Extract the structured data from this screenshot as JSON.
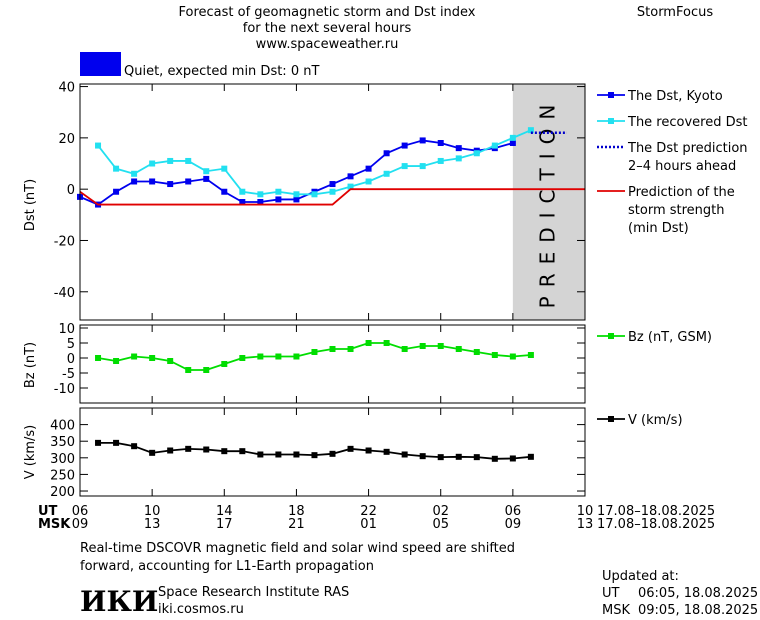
{
  "header": {
    "title_lines": [
      "Forecast of geomagnetic storm and Dst index",
      "for the next several hours",
      "www.spaceweather.ru"
    ],
    "brand": "StormFocus",
    "status": {
      "text": "Quiet, expected min Dst: 0 nT",
      "color": "#0000ee"
    }
  },
  "time_axis": {
    "ut_label": "UT",
    "msk_label": "MSK",
    "ut_ticks": [
      {
        "value": 0,
        "label": "06"
      },
      {
        "value": 4,
        "label": "10"
      },
      {
        "value": 8,
        "label": "14"
      },
      {
        "value": 12,
        "label": "18"
      },
      {
        "value": 16,
        "label": "22"
      },
      {
        "value": 20,
        "label": "02"
      },
      {
        "value": 24,
        "label": "06"
      },
      {
        "value": 28,
        "label": "10"
      }
    ],
    "msk_ticks": [
      {
        "value": 0,
        "label": "09"
      },
      {
        "value": 4,
        "label": "13"
      },
      {
        "value": 8,
        "label": "17"
      },
      {
        "value": 12,
        "label": "21"
      },
      {
        "value": 16,
        "label": "01"
      },
      {
        "value": 20,
        "label": "05"
      },
      {
        "value": 24,
        "label": "09"
      },
      {
        "value": 28,
        "label": "13"
      }
    ],
    "ut_range": "17.08–18.08.2025",
    "msk_range": "17.08–18.08.2025"
  },
  "chart_data": [
    {
      "type": "line",
      "ylabel": "Dst (nT)",
      "xlim": [
        0,
        28
      ],
      "ylim": [
        -51,
        41
      ],
      "yticks": [
        -40,
        -20,
        0,
        20,
        40
      ],
      "legend": "right",
      "prediction_region": {
        "range": [
          24,
          28
        ],
        "label": "PREDICTION",
        "color": "#d4d4d4"
      },
      "x": [
        0,
        1,
        2,
        3,
        4,
        5,
        6,
        7,
        8,
        9,
        10,
        11,
        12,
        13,
        14,
        15,
        16,
        17,
        18,
        19,
        20,
        21,
        22,
        23,
        24,
        25,
        26,
        27,
        28
      ],
      "series": [
        {
          "name": "The Dst, Kyoto",
          "color": "#0000ee",
          "marker": "square",
          "dash": false,
          "values": [
            -3,
            -6,
            -1,
            3,
            3,
            2,
            3,
            4,
            -1,
            -5,
            -5,
            -4,
            -4,
            -1,
            2,
            5,
            8,
            14,
            17,
            19,
            18,
            16,
            15,
            16,
            18,
            null,
            null,
            null,
            null
          ]
        },
        {
          "name": "The recovered Dst",
          "color": "#22e0f0",
          "marker": "square",
          "dash": false,
          "values": [
            null,
            17,
            8,
            6,
            10,
            11,
            11,
            7,
            8,
            -1,
            -2,
            -1,
            -2,
            -2,
            -1,
            1,
            3,
            6,
            9,
            9,
            11,
            12,
            14,
            17,
            20,
            23,
            null,
            null,
            null
          ]
        },
        {
          "name": "The Dst prediction\n2–4 hours ahead",
          "color": "#0000cc",
          "marker": "none",
          "dash": true,
          "values": [
            null,
            null,
            null,
            null,
            null,
            null,
            null,
            null,
            null,
            null,
            null,
            null,
            null,
            null,
            null,
            null,
            null,
            null,
            null,
            null,
            null,
            null,
            null,
            null,
            null,
            22,
            22,
            22,
            null
          ]
        },
        {
          "name": "Prediction of the\nstorm strength\n(min Dst)",
          "color": "#e00000",
          "marker": "none",
          "dash": false,
          "values": [
            -1,
            -6,
            -6,
            -6,
            -6,
            -6,
            -6,
            -6,
            -6,
            -6,
            -6,
            -6,
            -6,
            -6,
            -6,
            0,
            0,
            0,
            0,
            0,
            0,
            0,
            0,
            0,
            0,
            0,
            0,
            0,
            0
          ]
        }
      ]
    },
    {
      "type": "line",
      "ylabel": "Bz (nT)",
      "xlim": [
        0,
        28
      ],
      "ylim": [
        -15,
        11
      ],
      "yticks": [
        -10,
        -5,
        0,
        5,
        10
      ],
      "legend": "right",
      "x": [
        1,
        2,
        3,
        4,
        5,
        6,
        7,
        8,
        9,
        10,
        11,
        12,
        13,
        14,
        15,
        16,
        17,
        18,
        19,
        20,
        21,
        22,
        23,
        24,
        25
      ],
      "series": [
        {
          "name": "Bz (nT, GSM)",
          "color": "#00dd00",
          "marker": "square",
          "dash": false,
          "values": [
            0,
            -1,
            0.5,
            0,
            -1,
            -4,
            -4,
            -2,
            0,
            0.5,
            0.5,
            0.5,
            2,
            3,
            3,
            5,
            5,
            3,
            4,
            4,
            3,
            2,
            1,
            0.5,
            1
          ]
        }
      ]
    },
    {
      "type": "line",
      "ylabel": "V (km/s)",
      "xlim": [
        0,
        28
      ],
      "ylim": [
        185,
        450
      ],
      "yticks": [
        200,
        250,
        300,
        350,
        400
      ],
      "legend": "right",
      "x": [
        1,
        2,
        3,
        4,
        5,
        6,
        7,
        8,
        9,
        10,
        11,
        12,
        13,
        14,
        15,
        16,
        17,
        18,
        19,
        20,
        21,
        22,
        23,
        24,
        25
      ],
      "series": [
        {
          "name": "V (km/s)",
          "color": "#000000",
          "marker": "square",
          "dash": false,
          "values": [
            345,
            345,
            335,
            315,
            322,
            327,
            325,
            320,
            320,
            310,
            310,
            310,
            308,
            312,
            327,
            322,
            318,
            310,
            305,
            302,
            303,
            302,
            297,
            298,
            303
          ]
        }
      ]
    }
  ],
  "footer": {
    "note_lines": [
      "Real-time DSCOVR magnetic field and solar wind speed are shifted",
      "forward, accounting for L1-Earth propagation"
    ],
    "logo": "ИКИ",
    "institute": "Space Research Institute RAS",
    "website": "iki.cosmos.ru",
    "updated": {
      "title": "Updated at:",
      "ut": {
        "label": "UT",
        "time": "06:05, 18.08.2025"
      },
      "msk": {
        "label": "MSK",
        "time": "09:05, 18.08.2025"
      }
    }
  }
}
